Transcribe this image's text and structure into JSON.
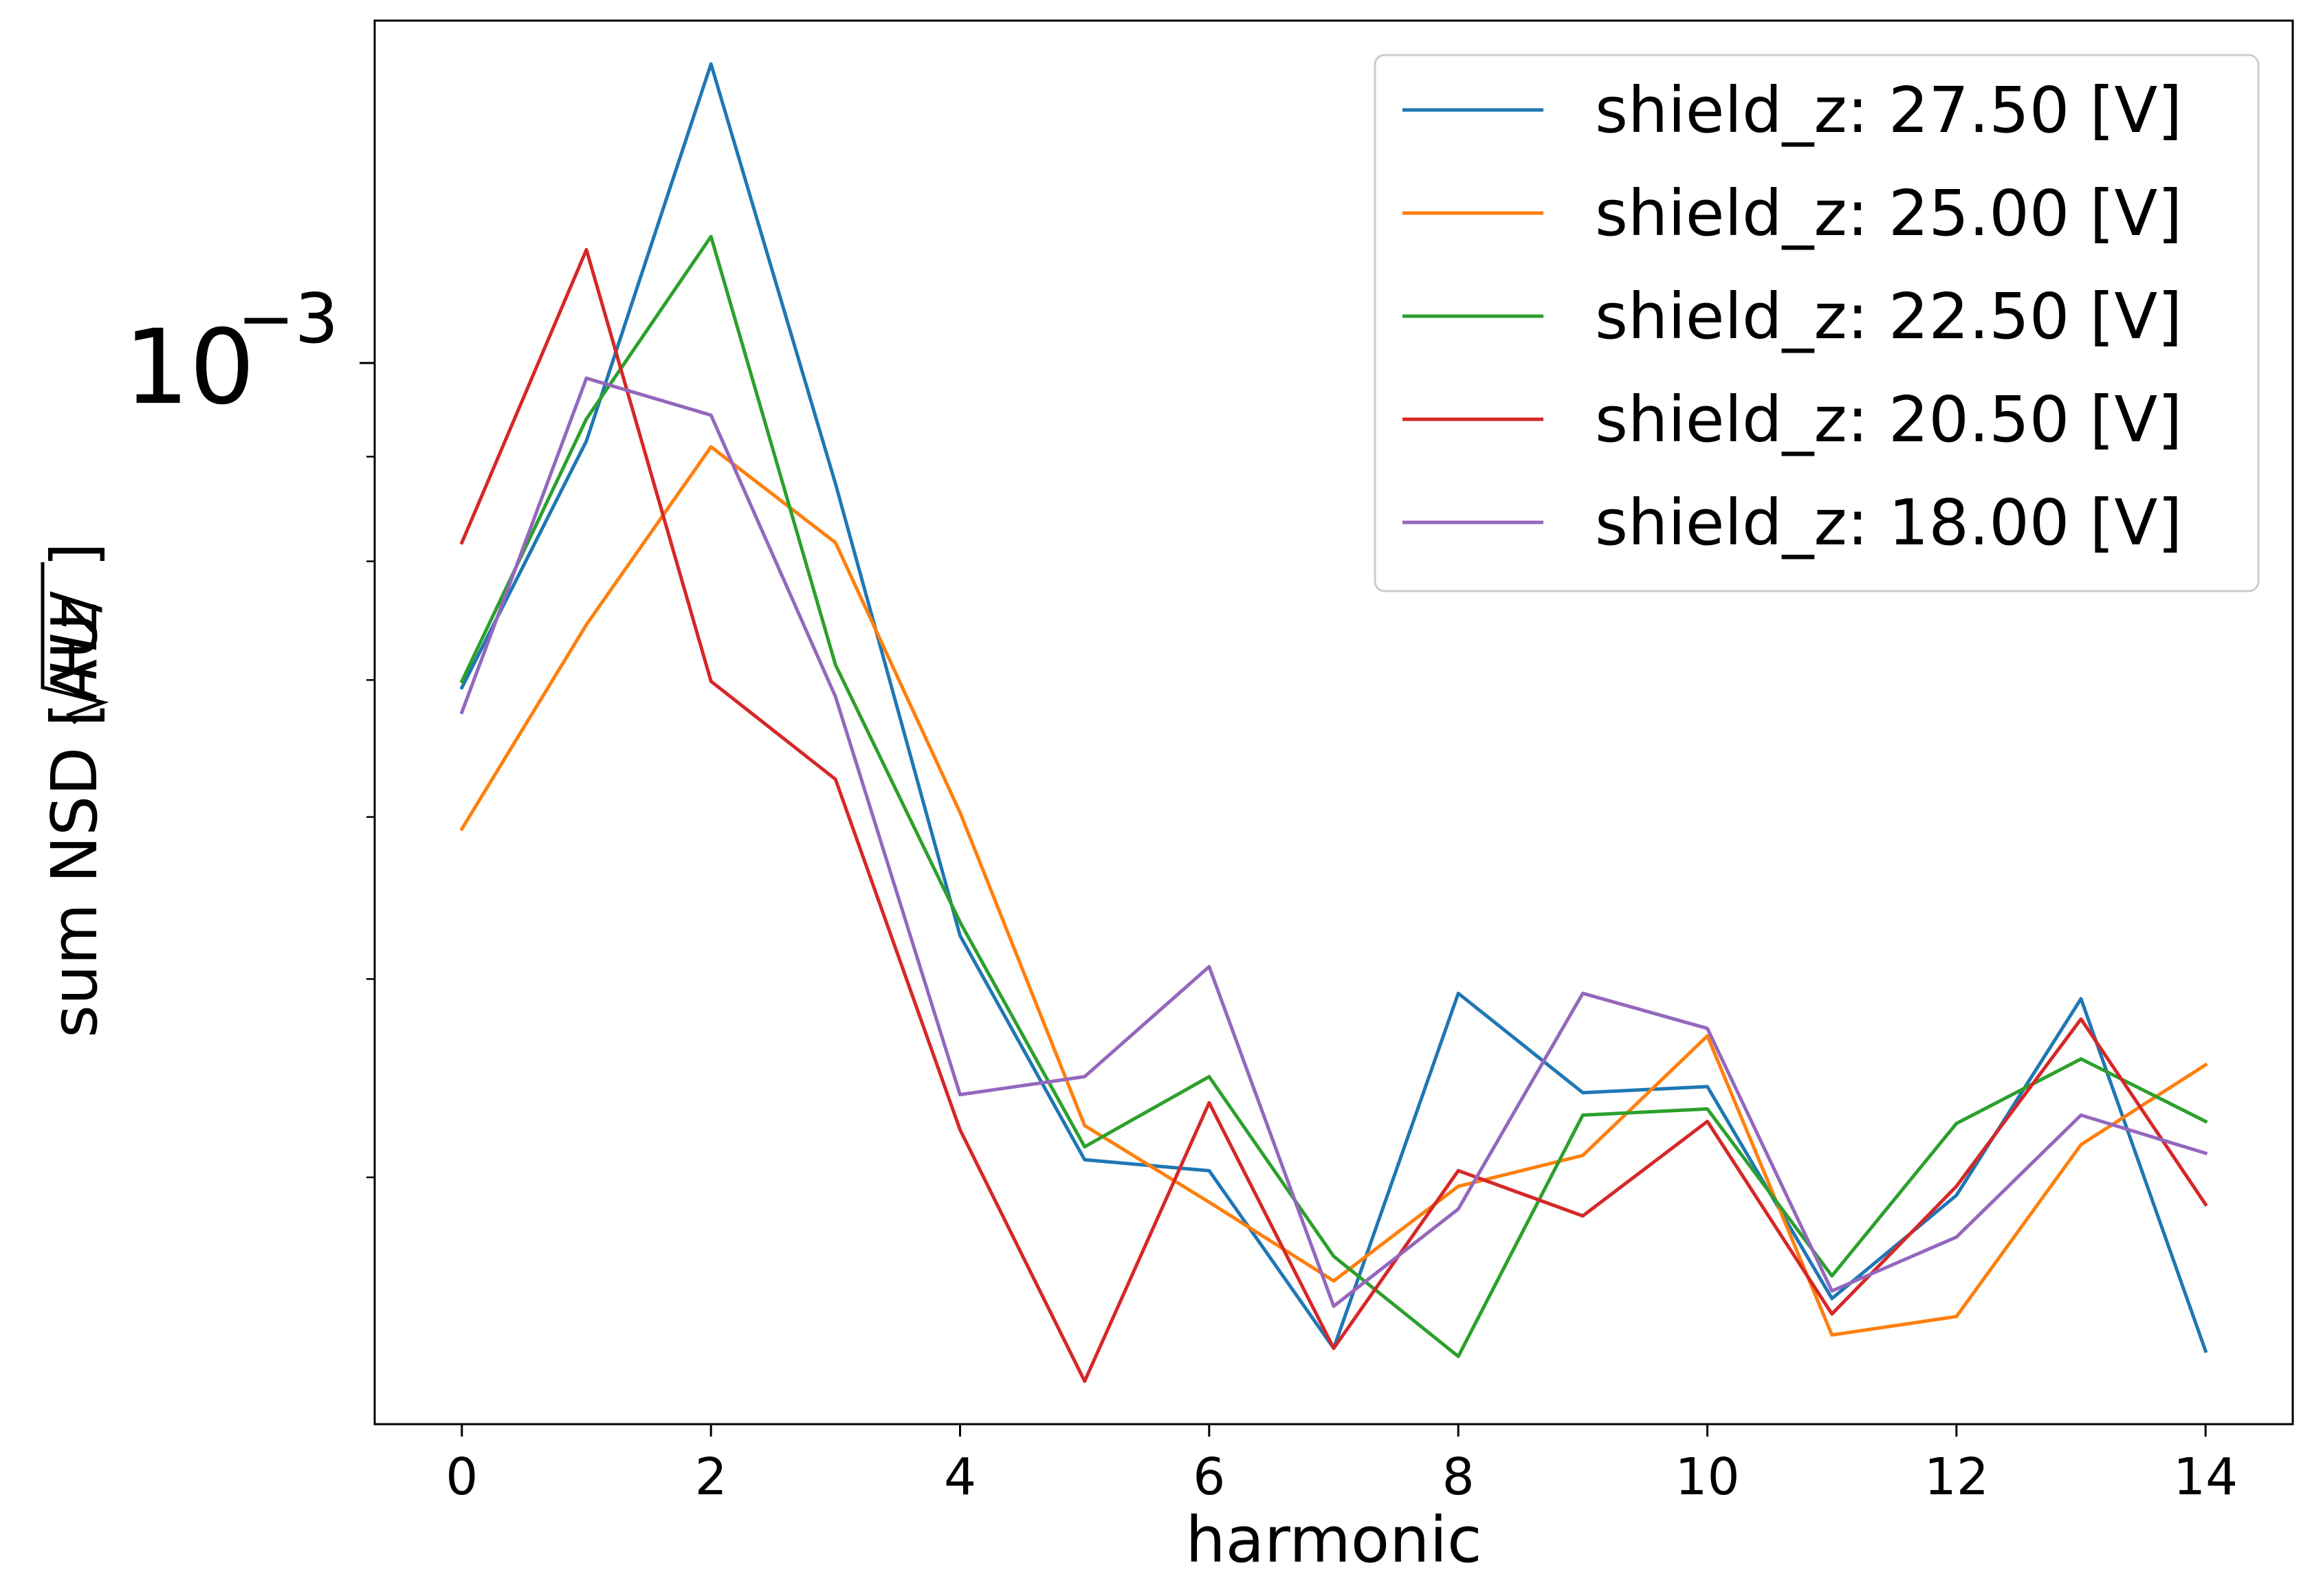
{
  "chart_data": {
    "type": "line",
    "title": "",
    "xlabel": "harmonic",
    "ylabel_text": "sum NSD [AU/",
    "ylabel_sqrt": "Hz",
    "ylabel_close": "]",
    "ytick_base": "10",
    "ytick_exp": "−3",
    "xlim": [
      -0.7,
      14.7
    ],
    "ylim": [
      0.000303,
      0.00147
    ],
    "y_scale": "log",
    "grid": false,
    "legend_position": "top-right",
    "x": [
      0,
      1,
      2,
      3,
      4,
      5,
      6,
      7,
      8,
      9,
      10,
      11,
      12,
      13,
      14
    ],
    "x_ticks": [
      "0",
      "2",
      "4",
      "6",
      "8",
      "10",
      "12",
      "14"
    ],
    "series": [
      {
        "name": "shield_z: 27.50 [V]",
        "color": "#1f77b4",
        "values": [
          0.000694,
          0.000916,
          0.0014,
          0.000873,
          0.000525,
          0.000408,
          0.000403,
          0.00033,
          0.000492,
          0.00044,
          0.000443,
          0.000349,
          0.000392,
          0.000489,
          0.000329
        ]
      },
      {
        "name": "shield_z: 25.00 [V]",
        "color": "#ff7f0e",
        "values": [
          0.000592,
          0.000745,
          0.00091,
          0.000817,
          0.000603,
          0.000424,
          0.000389,
          0.000356,
          0.000396,
          0.00041,
          0.000469,
          0.000335,
          0.000342,
          0.000415,
          0.000454
        ]
      },
      {
        "name": "shield_z: 22.50 [V]",
        "color": "#2ca02c",
        "values": [
          0.000699,
          0.000939,
          0.001153,
          0.000712,
          0.000533,
          0.000414,
          0.000448,
          0.000366,
          0.000327,
          0.000429,
          0.000432,
          0.000358,
          0.000425,
          0.000457,
          0.000426
        ]
      },
      {
        "name": "shield_z: 20.50 [V]",
        "color": "#d62728",
        "values": [
          0.000817,
          0.001136,
          0.000699,
          0.000626,
          0.000422,
          0.000318,
          0.000435,
          0.00033,
          0.000403,
          0.000383,
          0.000426,
          0.000343,
          0.000396,
          0.000478,
          0.000388
        ]
      },
      {
        "name": "shield_z: 18.00 [V]",
        "color": "#9467bd",
        "values": [
          0.000675,
          0.000983,
          0.000943,
          0.000687,
          0.000439,
          0.000448,
          0.000507,
          0.000346,
          0.000386,
          0.000492,
          0.000473,
          0.000352,
          0.000374,
          0.000429,
          0.000411
        ]
      }
    ]
  }
}
